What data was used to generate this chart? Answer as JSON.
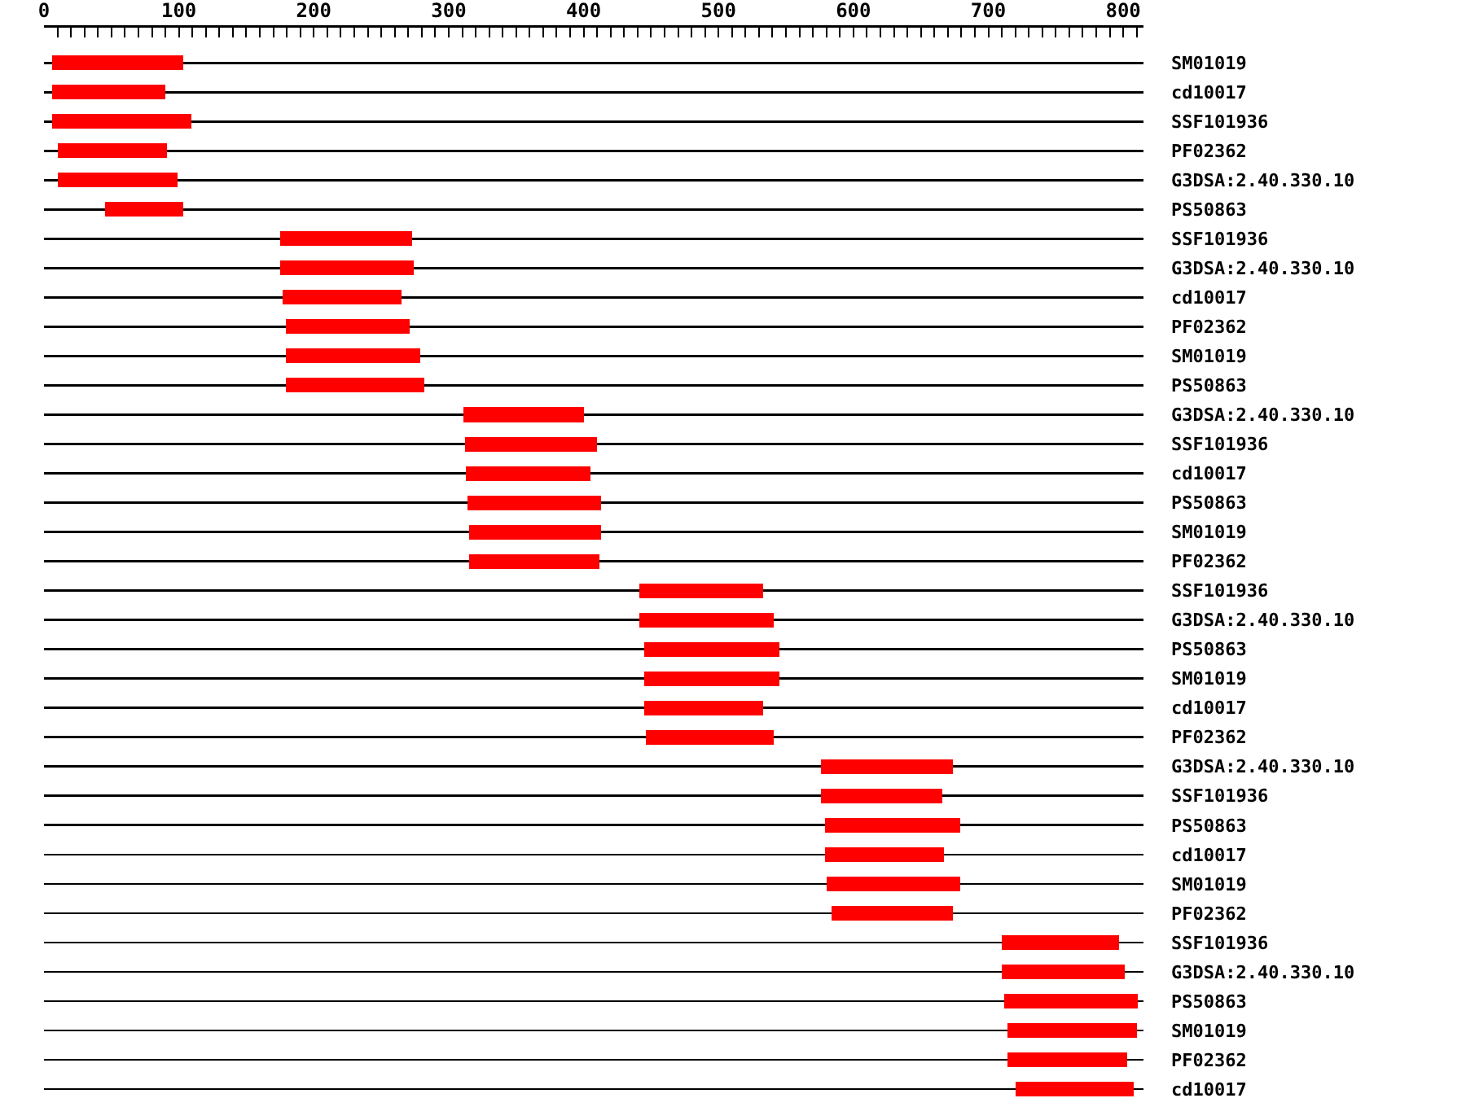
{
  "chart_data": {
    "type": "bar",
    "orientation": "horizontal",
    "grid": "y",
    "color": "#ff0000",
    "categories": [
      "SM01019",
      "cd10017",
      "SSF101936",
      "PF02362",
      "G3DSA:2.40.330.10",
      "PS50863",
      "SSF101936",
      "G3DSA:2.40.330.10",
      "cd10017",
      "PF02362",
      "SM01019",
      "PS50863",
      "G3DSA:2.40.330.10",
      "SSF101936",
      "cd10017",
      "PS50863",
      "SM01019",
      "PF02362",
      "SSF101936",
      "G3DSA:2.40.330.10",
      "PS50863",
      "SM01019",
      "cd10017",
      "PF02362",
      "G3DSA:2.40.330.10",
      "SSF101936",
      "PS50863",
      "cd10017",
      "SM01019",
      "PF02362",
      "SSF101936",
      "G3DSA:2.40.330.10",
      "PS50863",
      "SM01019",
      "PF02362",
      "cd10017"
    ],
    "base": [
      6,
      6,
      6,
      10,
      10,
      45,
      175,
      175,
      177,
      179,
      179,
      179,
      311,
      312,
      313,
      314,
      315,
      315,
      441,
      441,
      445,
      445,
      445,
      446,
      576,
      576,
      579,
      579,
      580,
      584,
      710,
      710,
      712,
      714,
      714,
      720
    ],
    "values": [
      97,
      84,
      103,
      81,
      89,
      58,
      98,
      99,
      88,
      92,
      100,
      103,
      89,
      98,
      92,
      99,
      98,
      97,
      92,
      100,
      100,
      100,
      88,
      95,
      98,
      90,
      100,
      88,
      99,
      90,
      87,
      91,
      99,
      96,
      89,
      88
    ],
    "xlim": [
      0,
      815
    ],
    "xticks": [
      0,
      {
        "value": 10,
        "label": null
      },
      {
        "value": 20,
        "label": null
      },
      {
        "value": 30,
        "label": null
      },
      {
        "value": 40,
        "label": null
      },
      {
        "value": 50,
        "label": null
      },
      {
        "value": 60,
        "label": null
      },
      {
        "value": 70,
        "label": null
      },
      {
        "value": 80,
        "label": null
      },
      {
        "value": 90,
        "label": null
      },
      100,
      {
        "value": 110,
        "label": null
      },
      {
        "value": 120,
        "label": null
      },
      {
        "value": 130,
        "label": null
      },
      {
        "value": 140,
        "label": null
      },
      {
        "value": 150,
        "label": null
      },
      {
        "value": 160,
        "label": null
      },
      {
        "value": 170,
        "label": null
      },
      {
        "value": 180,
        "label": null
      },
      {
        "value": 190,
        "label": null
      },
      200,
      {
        "value": 210,
        "label": null
      },
      {
        "value": 220,
        "label": null
      },
      {
        "value": 230,
        "label": null
      },
      {
        "value": 240,
        "label": null
      },
      {
        "value": 250,
        "label": null
      },
      {
        "value": 260,
        "label": null
      },
      {
        "value": 270,
        "label": null
      },
      {
        "value": 280,
        "label": null
      },
      {
        "value": 290,
        "label": null
      },
      300,
      {
        "value": 310,
        "label": null
      },
      {
        "value": 320,
        "label": null
      },
      {
        "value": 330,
        "label": null
      },
      {
        "value": 340,
        "label": null
      },
      {
        "value": 350,
        "label": null
      },
      {
        "value": 360,
        "label": null
      },
      {
        "value": 370,
        "label": null
      },
      {
        "value": 380,
        "label": null
      },
      {
        "value": 390,
        "label": null
      },
      400,
      {
        "value": 410,
        "label": null
      },
      {
        "value": 420,
        "label": null
      },
      {
        "value": 430,
        "label": null
      },
      {
        "value": 440,
        "label": null
      },
      {
        "value": 450,
        "label": null
      },
      {
        "value": 460,
        "label": null
      },
      {
        "value": 470,
        "label": null
      },
      {
        "value": 480,
        "label": null
      },
      {
        "value": 490,
        "label": null
      },
      500,
      {
        "value": 510,
        "label": null
      },
      {
        "value": 520,
        "label": null
      },
      {
        "value": 530,
        "label": null
      },
      {
        "value": 540,
        "label": null
      },
      {
        "value": 550,
        "label": null
      },
      {
        "value": 560,
        "label": null
      },
      {
        "value": 570,
        "label": null
      },
      {
        "value": 580,
        "label": null
      },
      {
        "value": 590,
        "label": null
      },
      600,
      {
        "value": 610,
        "label": null
      },
      {
        "value": 620,
        "label": null
      },
      {
        "value": 630,
        "label": null
      },
      {
        "value": 640,
        "label": null
      },
      {
        "value": 650,
        "label": null
      },
      {
        "value": 660,
        "label": null
      },
      {
        "value": 670,
        "label": null
      },
      {
        "value": 680,
        "label": null
      },
      {
        "value": 690,
        "label": null
      },
      700,
      {
        "value": 710,
        "label": null
      },
      {
        "value": 720,
        "label": null
      },
      {
        "value": 730,
        "label": null
      },
      {
        "value": 740,
        "label": null
      },
      {
        "value": 750,
        "label": null
      },
      {
        "value": 760,
        "label": null
      },
      {
        "value": 770,
        "label": null
      },
      {
        "value": 780,
        "label": null
      },
      {
        "value": 790,
        "label": null
      },
      800,
      {
        "value": 810,
        "label": null
      }
    ]
  }
}
